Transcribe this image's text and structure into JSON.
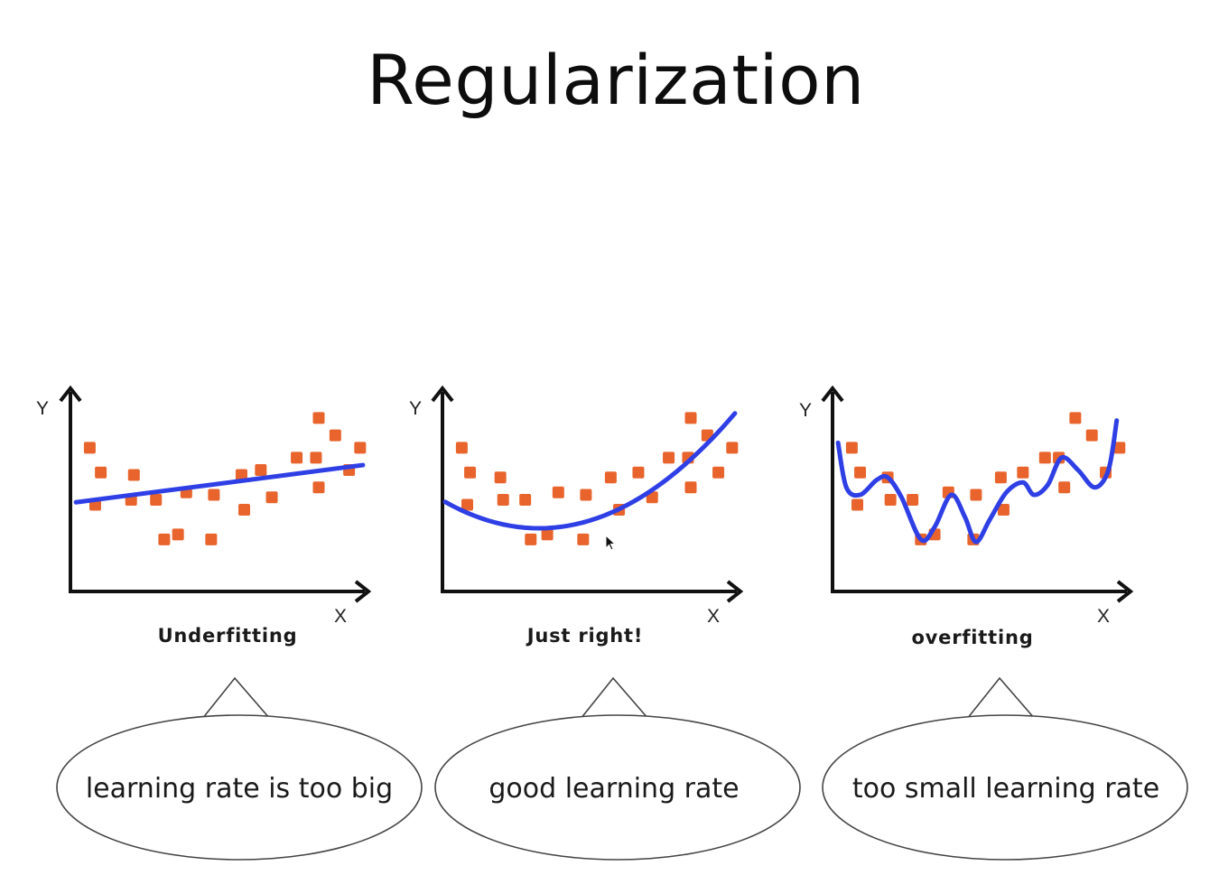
{
  "slide": {
    "title": "Regularization"
  },
  "colors": {
    "point": "#e8642c",
    "curve": "#2f3fe6",
    "axis": "#111111",
    "bubble_stroke": "#444444"
  },
  "panels": [
    {
      "id": "underfitting",
      "caption": "Underfitting",
      "y_axis_label": "Y",
      "x_axis_label": "X",
      "bubble_text": "learning rate is too big",
      "curve_type": "linear",
      "chart_data": {
        "type": "scatter",
        "points": [
          [
            0.7,
            5.8
          ],
          [
            1.1,
            4.8
          ],
          [
            0.9,
            3.5
          ],
          [
            2.3,
            4.7
          ],
          [
            2.2,
            3.7
          ],
          [
            3.1,
            3.7
          ],
          [
            3.4,
            2.1
          ],
          [
            3.9,
            2.3
          ],
          [
            4.2,
            4.0
          ],
          [
            5.1,
            2.1
          ],
          [
            5.2,
            3.9
          ],
          [
            6.2,
            4.7
          ],
          [
            6.3,
            3.3
          ],
          [
            6.9,
            4.9
          ],
          [
            7.3,
            3.8
          ],
          [
            8.2,
            5.4
          ],
          [
            8.9,
            5.4
          ],
          [
            9.0,
            4.2
          ],
          [
            9.0,
            7.0
          ],
          [
            9.6,
            6.3
          ],
          [
            10.1,
            4.9
          ],
          [
            10.5,
            5.8
          ]
        ],
        "xlim": [
          0,
          10.8
        ],
        "ylim": [
          0,
          8.2
        ]
      }
    },
    {
      "id": "just-right",
      "caption": "Just right!",
      "y_axis_label": "Y",
      "x_axis_label": "X",
      "bubble_text": "good learning rate",
      "curve_type": "quadratic",
      "chart_data": {
        "type": "scatter",
        "points": [
          [
            0.7,
            5.8
          ],
          [
            1.0,
            4.8
          ],
          [
            0.9,
            3.5
          ],
          [
            2.1,
            4.6
          ],
          [
            2.2,
            3.7
          ],
          [
            3.0,
            3.7
          ],
          [
            3.2,
            2.1
          ],
          [
            3.8,
            2.3
          ],
          [
            4.2,
            4.0
          ],
          [
            5.1,
            2.1
          ],
          [
            5.2,
            3.9
          ],
          [
            6.1,
            4.6
          ],
          [
            6.4,
            3.3
          ],
          [
            7.1,
            4.8
          ],
          [
            7.6,
            3.8
          ],
          [
            8.2,
            5.4
          ],
          [
            8.9,
            5.4
          ],
          [
            9.0,
            4.2
          ],
          [
            9.0,
            7.0
          ],
          [
            9.6,
            6.3
          ],
          [
            10.0,
            4.8
          ],
          [
            10.5,
            5.8
          ]
        ],
        "xlim": [
          0,
          10.8
        ],
        "ylim": [
          0,
          8.2
        ]
      }
    },
    {
      "id": "overfitting",
      "caption": "overfitting",
      "y_axis_label": "Y",
      "x_axis_label": "X",
      "bubble_text": "too small learning rate",
      "curve_type": "wiggly",
      "chart_data": {
        "type": "scatter",
        "points": [
          [
            0.7,
            5.8
          ],
          [
            1.0,
            4.8
          ],
          [
            0.9,
            3.5
          ],
          [
            2.0,
            4.6
          ],
          [
            2.1,
            3.7
          ],
          [
            2.9,
            3.7
          ],
          [
            3.2,
            2.1
          ],
          [
            3.7,
            2.3
          ],
          [
            4.2,
            4.0
          ],
          [
            5.1,
            2.1
          ],
          [
            5.2,
            3.9
          ],
          [
            6.1,
            4.6
          ],
          [
            6.2,
            3.3
          ],
          [
            6.9,
            4.8
          ],
          [
            7.7,
            5.4
          ],
          [
            8.2,
            5.4
          ],
          [
            8.4,
            4.2
          ],
          [
            8.8,
            7.0
          ],
          [
            9.4,
            6.3
          ],
          [
            9.9,
            4.8
          ],
          [
            10.4,
            5.8
          ]
        ],
        "xlim": [
          0,
          10.8
        ],
        "ylim": [
          0,
          8.2
        ]
      }
    }
  ]
}
